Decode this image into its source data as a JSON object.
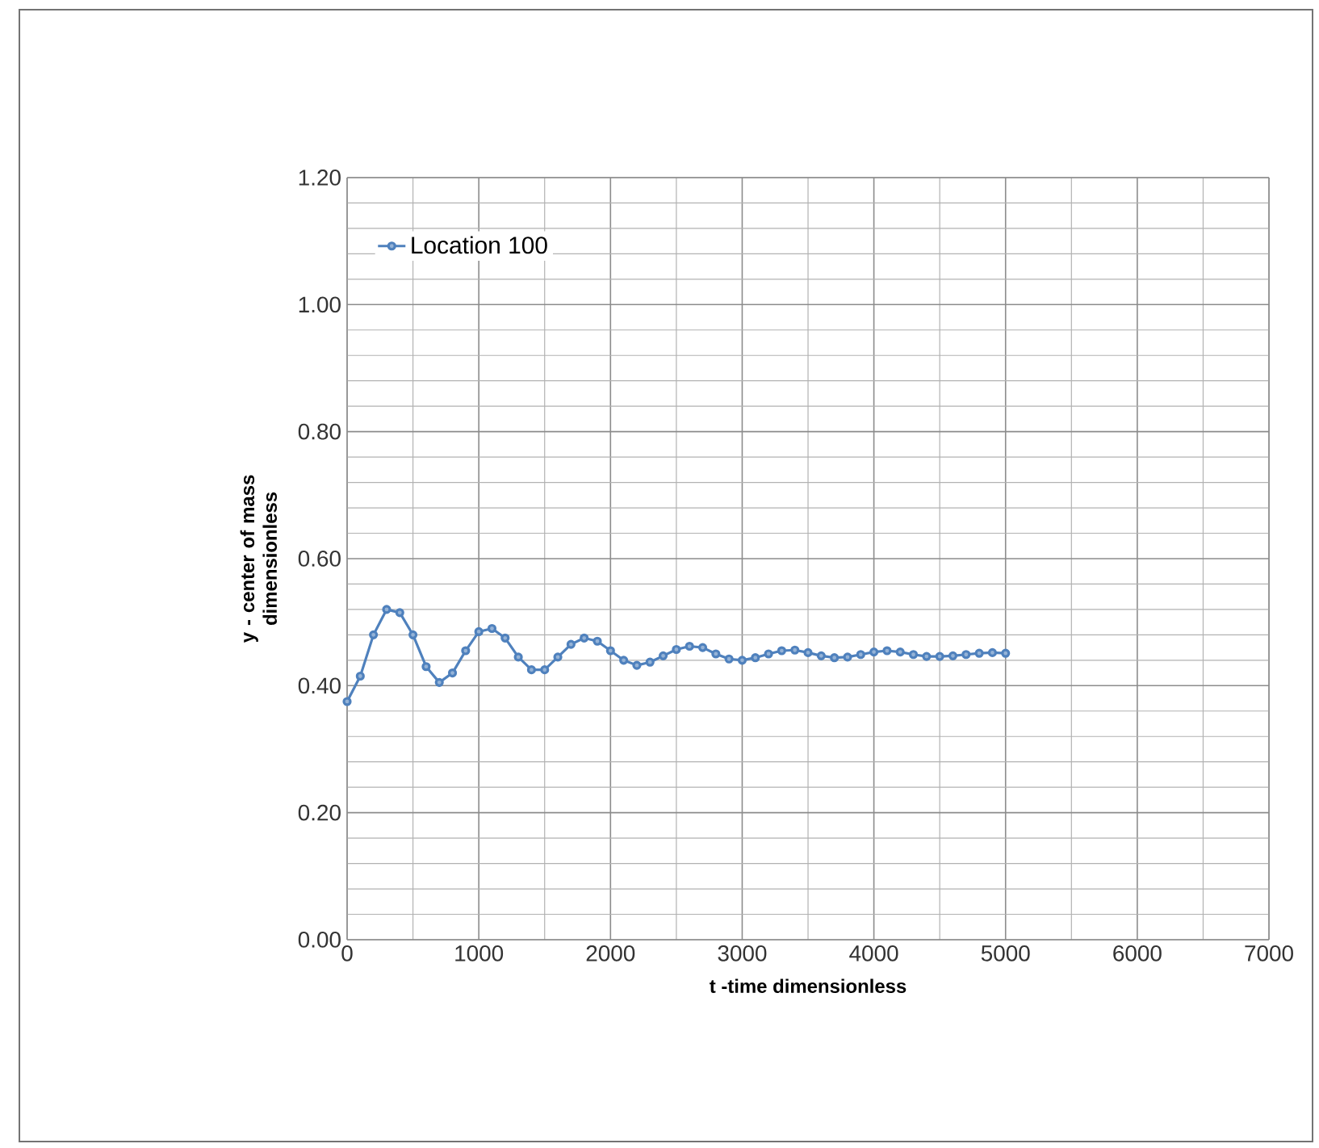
{
  "chart_data": {
    "type": "line",
    "xlabel": "t -time dimensionless",
    "ylabel": "y - center of mass dimensionless",
    "x": [
      0,
      100,
      200,
      300,
      400,
      500,
      600,
      700,
      800,
      900,
      1000,
      1100,
      1200,
      1300,
      1400,
      1500,
      1600,
      1700,
      1800,
      1900,
      2000,
      2100,
      2200,
      2300,
      2400,
      2500,
      2600,
      2700,
      2800,
      2900,
      3000,
      3100,
      3200,
      3300,
      3400,
      3500,
      3600,
      3700,
      3800,
      3900,
      4000,
      4100,
      4200,
      4300,
      4400,
      4500,
      4600,
      4700,
      4800,
      4900,
      5000
    ],
    "series": [
      {
        "name": "Location 100",
        "color": "#4f81bd",
        "values": [
          0.375,
          0.415,
          0.48,
          0.52,
          0.515,
          0.48,
          0.43,
          0.405,
          0.42,
          0.455,
          0.485,
          0.49,
          0.475,
          0.445,
          0.425,
          0.425,
          0.445,
          0.465,
          0.475,
          0.47,
          0.455,
          0.44,
          0.432,
          0.437,
          0.447,
          0.457,
          0.462,
          0.46,
          0.45,
          0.442,
          0.44,
          0.444,
          0.45,
          0.455,
          0.456,
          0.452,
          0.447,
          0.444,
          0.445,
          0.449,
          0.453,
          0.455,
          0.453,
          0.449,
          0.446,
          0.446,
          0.447,
          0.449,
          0.451,
          0.452,
          0.451
        ]
      }
    ],
    "xlim": [
      0,
      7000
    ],
    "xticks": [
      0,
      1000,
      2000,
      3000,
      4000,
      5000,
      6000,
      7000
    ],
    "ylim": [
      0,
      1.2
    ],
    "yticks": [
      {
        "value": 0,
        "label": "0.00"
      },
      {
        "value": 0.2,
        "label": "0.20"
      },
      {
        "value": 0.4,
        "label": "0.40"
      },
      {
        "value": 0.6,
        "label": "0.60"
      },
      {
        "value": 0.8,
        "label": "0.80"
      },
      {
        "value": 1.0,
        "label": "1.00"
      },
      {
        "value": 1.2,
        "label": "1.20"
      }
    ],
    "grid": true,
    "legend": "top left",
    "marker": "circle",
    "line_style": "solid"
  }
}
